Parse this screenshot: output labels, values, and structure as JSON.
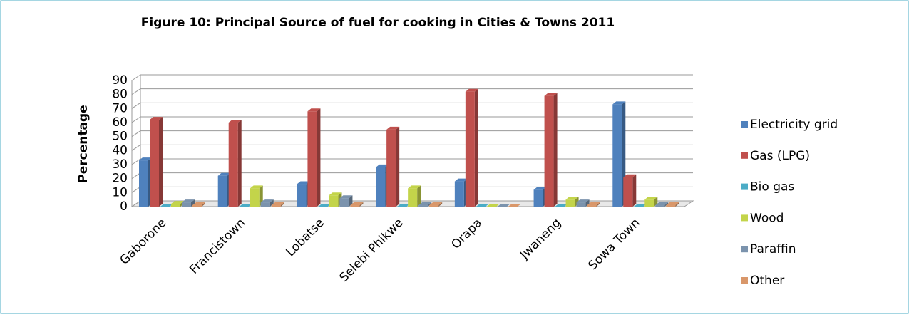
{
  "chart_data": {
    "type": "bar3d",
    "title": "Figure 10: Principal Source of fuel for cooking in Cities & Towns 2011",
    "y_label": "Percentage",
    "categories": [
      "Gaborone",
      "Francistown",
      "Lobatse",
      "Selebi Phikwe",
      "Orapa",
      "Jwaneng",
      "Sowa Town"
    ],
    "series": [
      {
        "name": "Electricity grid",
        "color": "#4f81bd",
        "values": [
          33,
          22,
          16,
          28,
          18,
          12,
          73
        ]
      },
      {
        "name": "Gas (LPG)",
        "color": "#c0504d",
        "values": [
          62,
          60,
          68,
          55,
          82,
          79,
          21
        ]
      },
      {
        "name": "Bio gas",
        "color": "#4bacc6",
        "values": [
          0,
          0,
          0,
          0,
          0,
          0,
          0
        ]
      },
      {
        "name": "Wood",
        "color": "#c3d44a",
        "values": [
          2,
          13,
          8,
          13,
          0,
          5,
          5
        ]
      },
      {
        "name": "Paraffin",
        "color": "#7b93ad",
        "values": [
          3,
          3,
          6,
          1,
          0,
          3,
          1
        ]
      },
      {
        "name": "Other",
        "color": "#d9976a",
        "values": [
          1,
          1,
          1,
          1,
          0,
          1,
          1
        ]
      }
    ],
    "ylim": [
      0,
      90
    ],
    "yticks": [
      0,
      10,
      20,
      30,
      40,
      50,
      60,
      70,
      80,
      90
    ],
    "grid": true,
    "legend": "right"
  }
}
